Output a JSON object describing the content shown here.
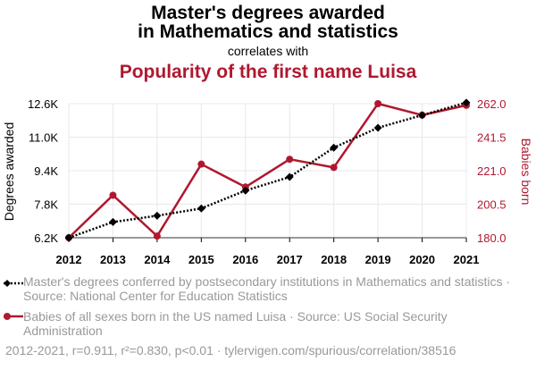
{
  "title": {
    "line1": "Master's degrees awarded",
    "line2": "in Mathematics and statistics",
    "correlates": "correlates with",
    "line3": "Popularity of the first name Luisa"
  },
  "colors": {
    "series1": "#000000",
    "series2": "#b0182f",
    "grid": "#e8e8e8",
    "muted": "#999999"
  },
  "chart_data": {
    "type": "line",
    "x": [
      2012,
      2013,
      2014,
      2015,
      2016,
      2017,
      2018,
      2019,
      2020,
      2021
    ],
    "xlim": [
      2012,
      2021
    ],
    "y_left": {
      "label": "Degrees awarded",
      "ticks": [
        "6.2K",
        "7.8K",
        "9.4K",
        "11.0K",
        "12.6K"
      ],
      "tick_values": [
        6200,
        7800,
        9400,
        11000,
        12600
      ],
      "range": [
        6200,
        12600
      ]
    },
    "y_right": {
      "label": "Babies born",
      "ticks": [
        "180.0",
        "200.5",
        "221.0",
        "241.5",
        "262.0"
      ],
      "tick_values": [
        180.0,
        200.5,
        221.0,
        241.5,
        262.0
      ],
      "range": [
        180.0,
        262.0
      ]
    },
    "series": [
      {
        "name": "Master's degrees conferred by postsecondary institutions in Mathematics and statistics · Source: National Center for Education Statistics",
        "axis": "left",
        "style": "dotted",
        "marker": "diamond",
        "values": [
          6200,
          6950,
          7250,
          7600,
          8450,
          9100,
          10500,
          11450,
          12050,
          12650
        ]
      },
      {
        "name": "Babies of all sexes born in the US named Luisa · Source: US Social Security Administration",
        "axis": "right",
        "style": "solid",
        "marker": "circle",
        "values": [
          180,
          206,
          181,
          225,
          211,
          228,
          223,
          262,
          255,
          261
        ]
      }
    ],
    "grid": true
  },
  "legend": {
    "item1": "Master's degrees conferred by postsecondary institutions in Mathematics and statistics · Source: National Center for Education Statistics",
    "item2": "Babies of all sexes born in the US named Luisa · Source: US Social Security Administration"
  },
  "footer": "2012-2021, r=0.911, r²=0.830, p<0.01 · tylervigen.com/spurious/correlation/38516"
}
